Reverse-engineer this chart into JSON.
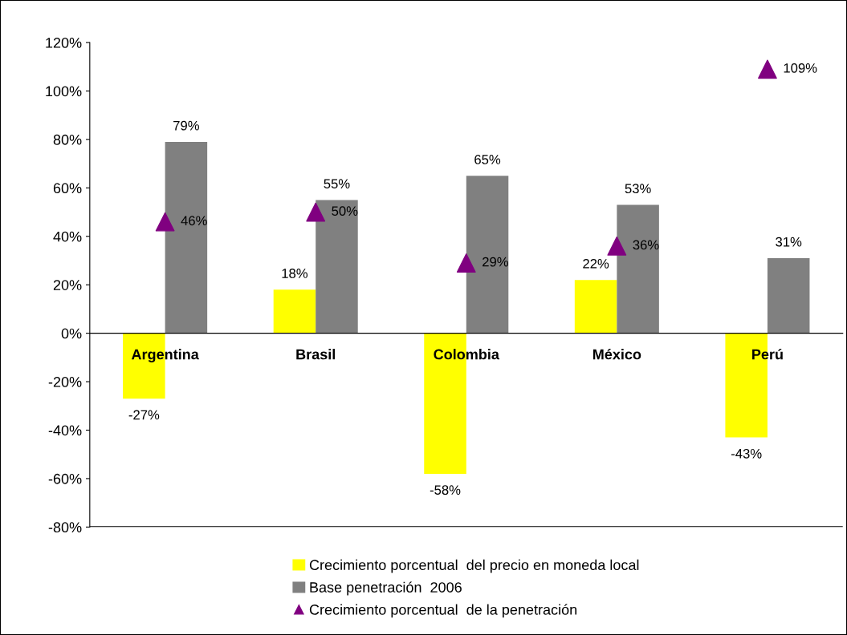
{
  "chart_data": {
    "type": "bar",
    "categories": [
      "Argentina",
      "Brasil",
      "Colombia",
      "México",
      "Perú"
    ],
    "series": [
      {
        "name": "Crecimiento porcentual  del precio en moneda local",
        "color": "#ffff00",
        "values": [
          -27,
          18,
          -58,
          22,
          -43
        ],
        "value_labels": [
          "-27%",
          "18%",
          "-58%",
          "22%",
          "-43%"
        ]
      },
      {
        "name": "Base penetración  2006",
        "color": "#808080",
        "values": [
          79,
          55,
          65,
          53,
          31
        ],
        "value_labels": [
          "79%",
          "55%",
          "65%",
          "53%",
          "31%"
        ]
      },
      {
        "name": "Crecimiento porcentual  de la penetración",
        "type": "scatter",
        "marker": "triangle",
        "color": "#800080",
        "values": [
          46,
          50,
          29,
          36,
          109
        ],
        "value_labels": [
          "46%",
          "50%",
          "29%",
          "36%",
          "109%"
        ]
      }
    ],
    "ylim": [
      -80,
      120
    ],
    "yticks": [
      {
        "value": -80,
        "label": "-80%"
      },
      {
        "value": -60,
        "label": "-60%"
      },
      {
        "value": -40,
        "label": "-40%"
      },
      {
        "value": -20,
        "label": "-20%"
      },
      {
        "value": 0,
        "label": "0%"
      },
      {
        "value": 20,
        "label": "20%"
      },
      {
        "value": 40,
        "label": "40%"
      },
      {
        "value": 60,
        "label": "60%"
      },
      {
        "value": 80,
        "label": "80%"
      },
      {
        "value": 100,
        "label": "100%"
      },
      {
        "value": 120,
        "label": "120%"
      }
    ],
    "grid": false,
    "legend": "bottom"
  }
}
